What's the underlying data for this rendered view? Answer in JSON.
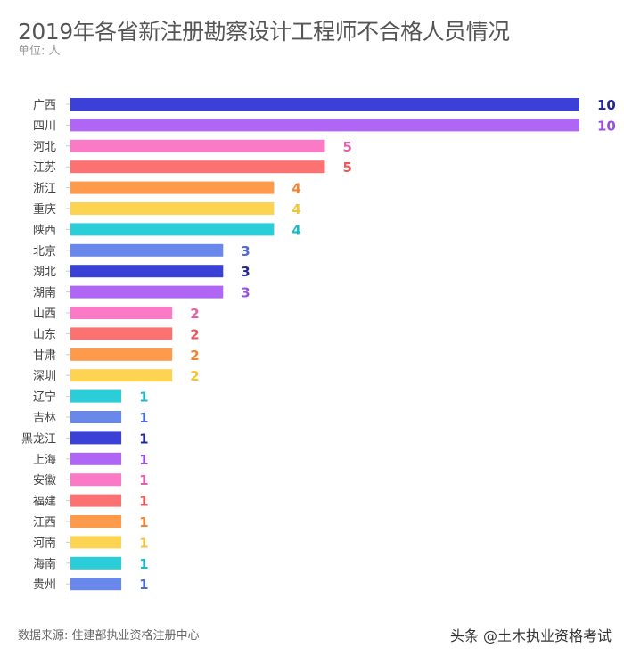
{
  "chart_data": {
    "type": "bar",
    "orientation": "horizontal",
    "title": "2019年各省新注册勘察设计工程师不合格人员情况",
    "subtitle": "单位: 人",
    "categories": [
      "广西",
      "四川",
      "河北",
      "江苏",
      "浙江",
      "重庆",
      "陕西",
      "北京",
      "湖北",
      "湖南",
      "山西",
      "山东",
      "甘肃",
      "深圳",
      "辽宁",
      "吉林",
      "黑龙江",
      "上海",
      "安徽",
      "福建",
      "江西",
      "河南",
      "海南",
      "贵州"
    ],
    "values": [
      10,
      10,
      5,
      5,
      4,
      4,
      4,
      3,
      3,
      3,
      2,
      2,
      2,
      2,
      1,
      1,
      1,
      1,
      1,
      1,
      1,
      1,
      1,
      1
    ],
    "xlim": [
      0,
      10
    ],
    "grid": false,
    "data_labels": true,
    "palette": [
      "#3b40d6",
      "#b066f5",
      "#fa7ac6",
      "#fc7272",
      "#fd9a4c",
      "#fdd452",
      "#2acdd8",
      "#6a87ec"
    ],
    "label_palette": [
      "#23279a",
      "#9b4fe0",
      "#e45fae",
      "#e85a5a",
      "#f08434",
      "#f5c33a",
      "#1cb9c4",
      "#4e6ad6"
    ],
    "source": "数据来源: 住建部执业资格注册中心"
  },
  "watermark": "头条 @土木执业资格考试"
}
